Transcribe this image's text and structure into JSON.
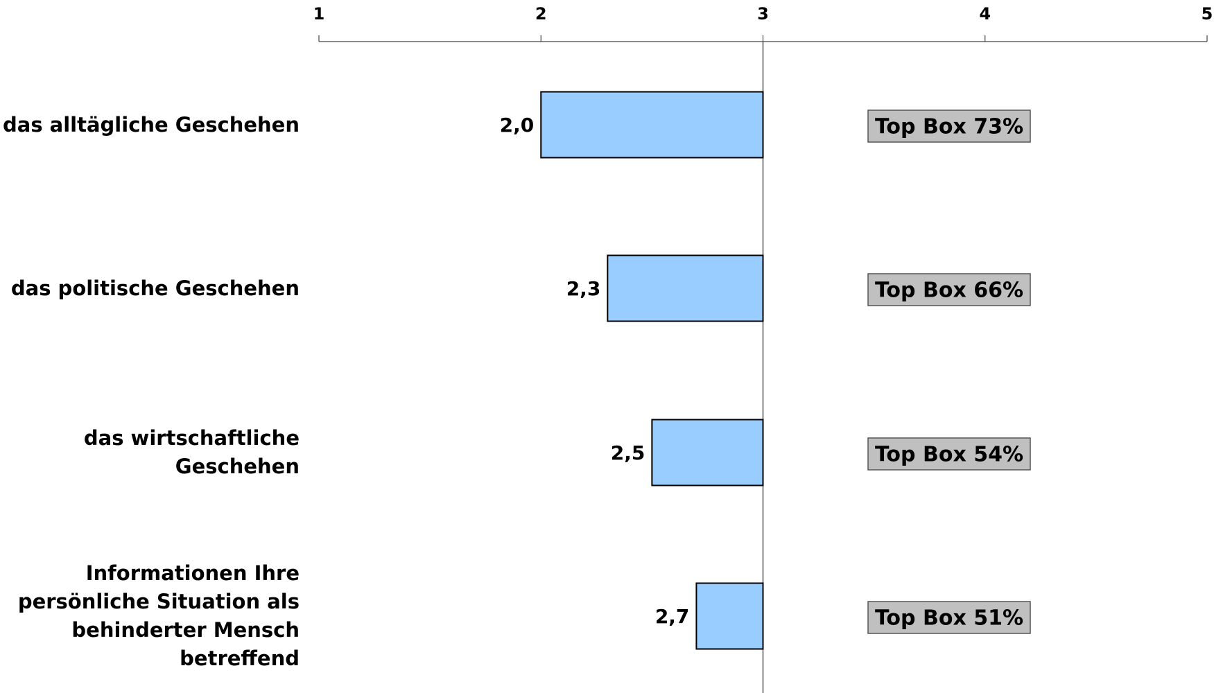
{
  "chart_data": {
    "type": "bar",
    "orientation": "horizontal",
    "x_ticks": [
      "1",
      "2",
      "3",
      "4",
      "5"
    ],
    "xlim": [
      1,
      5
    ],
    "reference_value": 3,
    "categories": [
      "das alltägliche Geschehen",
      "das politische Geschehen",
      "das wirtschaftliche Geschehen",
      "Informationen Ihre persönliche Situation als behinderter Mensch betreffend"
    ],
    "category_lines": [
      [
        "das alltägliche Geschehen"
      ],
      [
        "das politische Geschehen"
      ],
      [
        "das wirtschaftliche",
        "Geschehen"
      ],
      [
        "Informationen Ihre",
        "persönliche Situation als",
        "behinderter Mensch",
        "betreffend"
      ]
    ],
    "values": [
      2.0,
      2.3,
      2.5,
      2.7
    ],
    "value_labels": [
      "2,0",
      "2,3",
      "2,5",
      "2,7"
    ],
    "top_box_labels": [
      "Top Box 73%",
      "Top Box 66%",
      "Top Box 54%",
      "Top Box 51%"
    ],
    "bar_color": "#99ccff",
    "box_color": "#c0c0c0",
    "grid": false,
    "legend": "none"
  }
}
